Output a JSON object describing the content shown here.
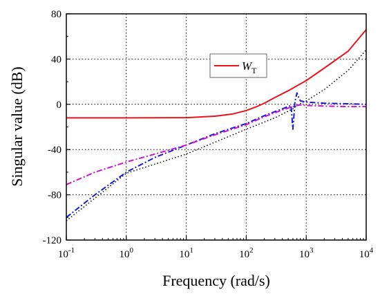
{
  "chart_data": {
    "type": "line",
    "title": "",
    "xlabel": "Frequency (rad/s)",
    "ylabel": "Singular value (dB)",
    "xscale": "log",
    "xlim": [
      0.1,
      10000
    ],
    "ylim": [
      -120,
      80
    ],
    "grid": true,
    "legend_position": "top-right",
    "x_ticks": [
      {
        "value": 0.1,
        "base": "10",
        "exp": "-1"
      },
      {
        "value": 1,
        "base": "10",
        "exp": "0"
      },
      {
        "value": 10,
        "base": "10",
        "exp": "1"
      },
      {
        "value": 100,
        "base": "10",
        "exp": "2"
      },
      {
        "value": 1000,
        "base": "10",
        "exp": "3"
      },
      {
        "value": 10000,
        "base": "10",
        "exp": "4"
      }
    ],
    "y_ticks": [
      {
        "value": 80,
        "label": "80"
      },
      {
        "value": 40,
        "label": "40"
      },
      {
        "value": 0,
        "label": "0"
      },
      {
        "value": -40,
        "label": "-40"
      },
      {
        "value": -80,
        "label": "-80"
      },
      {
        "value": -120,
        "label": "-120"
      }
    ],
    "series": [
      {
        "name": "W_T",
        "legend_main": "W",
        "legend_sub": "T",
        "color": "#e8141c",
        "style": "solid",
        "width": 2,
        "in_legend": true,
        "x": [
          0.1,
          1,
          10,
          30,
          60,
          100,
          150,
          200,
          300,
          500,
          1000,
          2000,
          5000,
          10000
        ],
        "y": [
          -12,
          -12,
          -11.8,
          -10.5,
          -8.5,
          -5.5,
          -2,
          1,
          6,
          12,
          21,
          32,
          47,
          66
        ]
      },
      {
        "name": "",
        "color": "#000000",
        "style": "dotted",
        "width": 1.5,
        "in_legend": false,
        "x": [
          0.1,
          1,
          10,
          100,
          300,
          600,
          750,
          1000,
          2000,
          5000,
          10000
        ],
        "y": [
          -103,
          -61,
          -44,
          -22,
          -12,
          -4,
          0,
          3,
          13,
          30,
          48
        ]
      },
      {
        "name": "",
        "color": "#1818e0",
        "style": "dashdot",
        "width": 2,
        "in_legend": false,
        "x": [
          0.1,
          0.3,
          1,
          3,
          10,
          30,
          100,
          200,
          400,
          560,
          600,
          620,
          650,
          700,
          750,
          800,
          1000,
          2000,
          5000,
          10000
        ],
        "y": [
          -100,
          -80,
          -60,
          -47,
          -36,
          -26,
          -17,
          -10,
          -4,
          -1,
          -22,
          -12,
          3,
          10,
          6,
          3,
          2,
          1,
          0.5,
          0
        ]
      },
      {
        "name": "",
        "color": "#d010d0",
        "style": "dashdot",
        "width": 2,
        "in_legend": false,
        "x": [
          0.1,
          0.3,
          1,
          3,
          10,
          30,
          100,
          200,
          400,
          600,
          700,
          800,
          1000,
          2000,
          5000,
          10000
        ],
        "y": [
          -71,
          -60,
          -51,
          -44,
          -36,
          -27,
          -18,
          -11,
          -5,
          -2,
          -1,
          -0.5,
          -1,
          -1.5,
          -2,
          -2
        ]
      }
    ]
  }
}
